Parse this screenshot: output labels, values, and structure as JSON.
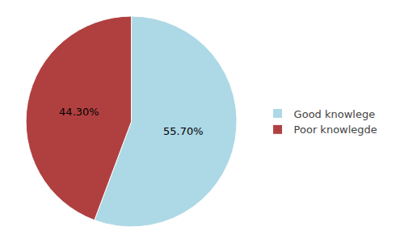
{
  "chart_data": {
    "type": "pie",
    "categories": [
      "Good knowlege",
      "Poor knowlegde"
    ],
    "values": [
      55.7,
      44.3
    ],
    "value_labels": [
      "55.70%",
      "44.30%"
    ],
    "colors": [
      "#add8e6",
      "#b04040"
    ],
    "data_labels": true,
    "legend": "right"
  }
}
